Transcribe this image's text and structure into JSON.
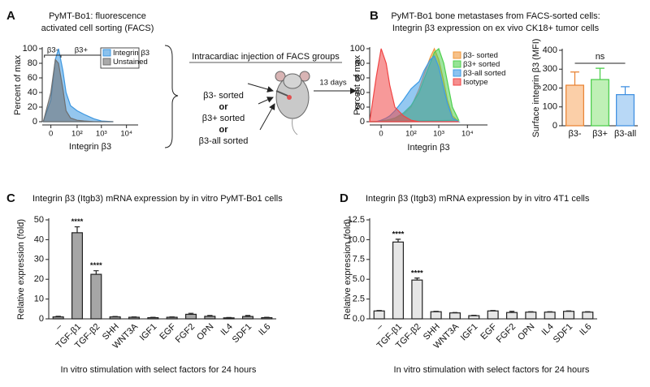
{
  "chart_data": [
    {
      "type": "area",
      "label": "A",
      "title": [
        "PyMT-Bo1: fluorescence",
        "activated cell sorting (FACS)"
      ],
      "xlabel": "Integrin β3",
      "ylabel": "Percent of max",
      "xscale": "symlog",
      "xlim": [
        -12,
        29000
      ],
      "xticks": [
        0,
        {
          "value": 100,
          "label": "10²"
        },
        {
          "value": 1000,
          "label": "10³"
        },
        {
          "value": 10000,
          "label": "10⁴"
        }
      ],
      "ylim": [
        0,
        100
      ],
      "yticks": [
        0,
        20,
        40,
        60,
        80,
        100
      ],
      "legend": "upper right",
      "x": [
        -10,
        0,
        5,
        10,
        20,
        30,
        50,
        100,
        200,
        500,
        1000,
        3000
      ],
      "series": [
        {
          "name": "Integrin β3",
          "color": "#3d97e0",
          "values": [
            0,
            30,
            85,
            100,
            70,
            40,
            22,
            15,
            10,
            4,
            1,
            0
          ]
        },
        {
          "name": "Unstained",
          "color": "#6f6f6f",
          "values": [
            0,
            40,
            85,
            80,
            45,
            15,
            5,
            2,
            1,
            0,
            0,
            0
          ]
        }
      ],
      "gates": [
        {
          "label": "β3-",
          "range": [
            -8,
            15
          ]
        },
        {
          "label": "β3+",
          "range": [
            15,
            1000
          ]
        }
      ]
    },
    {
      "type": "area",
      "label": "B",
      "title": [
        "PyMT-Bo1 bone metastases from FACS-sorted cells:",
        "Integrin β3 expression on ex vivo CK18+ tumor cells"
      ],
      "xlabel": "Integrin β3",
      "ylabel": "Percent of max",
      "xscale": "symlog",
      "xlim": [
        -15,
        50000
      ],
      "xticks": [
        0,
        {
          "value": 100,
          "label": "10²"
        },
        {
          "value": 1000,
          "label": "10³"
        },
        {
          "value": 10000,
          "label": "10⁴"
        }
      ],
      "ylim": [
        0,
        100
      ],
      "yticks": [
        0,
        20,
        40,
        60,
        80,
        100
      ],
      "legend": "upper right",
      "x": [
        -15,
        -5,
        0,
        5,
        10,
        20,
        50,
        100,
        200,
        300,
        500,
        700,
        1000,
        1500,
        2000,
        3000,
        5000
      ],
      "series": [
        {
          "name": "β3- sorted",
          "color": "#f0983a",
          "values": [
            0,
            0,
            1,
            2,
            3,
            5,
            10,
            20,
            45,
            65,
            88,
            100,
            85,
            55,
            30,
            8,
            0
          ]
        },
        {
          "name": "β3+ sorted",
          "color": "#4fd04f",
          "values": [
            0,
            0,
            1,
            2,
            3,
            5,
            12,
            22,
            40,
            58,
            80,
            95,
            100,
            80,
            55,
            20,
            2
          ]
        },
        {
          "name": "β3-all sorted",
          "color": "#3d9be6",
          "values": [
            0,
            0,
            2,
            5,
            8,
            15,
            30,
            45,
            55,
            70,
            85,
            90,
            75,
            45,
            25,
            5,
            0
          ]
        },
        {
          "name": "Isotype",
          "color": "#f04545",
          "values": [
            0,
            60,
            100,
            80,
            50,
            20,
            8,
            2,
            0,
            0,
            0,
            0,
            0,
            0,
            0,
            0,
            0
          ]
        }
      ]
    },
    {
      "type": "bar",
      "ylabel": "Surface integrin β3 (MFI)",
      "categories": [
        "β3-",
        "β3+",
        "β3-all"
      ],
      "values": [
        215,
        245,
        165
      ],
      "errors": [
        70,
        60,
        42
      ],
      "colors": [
        "#fbcfa8",
        "#bff0b6",
        "#b8d8f6"
      ],
      "edge_colors": [
        "#e8802e",
        "#45cc45",
        "#3b8de0"
      ],
      "ylim": [
        0,
        400
      ],
      "yticks": [
        0,
        100,
        200,
        300,
        400
      ],
      "annotation": "ns"
    },
    {
      "type": "bar",
      "label": "C",
      "title": "Integrin β3 (Itgb3) mRNA expression by in vitro PyMT-Bo1 cells",
      "ylabel": "Relative expression (fold)",
      "xlabel": "In vitro stimulation with select factors for 24 hours",
      "categories": [
        "–",
        "TGF-β1",
        "TGF-β2",
        "SHH",
        "WNT3A",
        "IGF1",
        "EGF",
        "FGF2",
        "OPN",
        "IL4",
        "SDF1",
        "IL6"
      ],
      "values": [
        1.0,
        43.5,
        22.5,
        1.0,
        0.8,
        0.6,
        0.8,
        2.3,
        1.3,
        0.5,
        1.2,
        0.6
      ],
      "errors": [
        0.3,
        3.0,
        1.8,
        0.2,
        0.2,
        0.2,
        0.2,
        0.5,
        0.4,
        0.2,
        0.5,
        0.2
      ],
      "significance": [
        null,
        "****",
        "****",
        null,
        null,
        null,
        null,
        null,
        null,
        null,
        null,
        null
      ],
      "color": "#a6a6a6",
      "edge_color": "#222222",
      "xtick_rotation": 45,
      "ylim": [
        0,
        50
      ],
      "yticks": [
        0,
        10,
        20,
        30,
        40,
        50
      ]
    },
    {
      "type": "bar",
      "label": "D",
      "title": "Integrin β3 (Itgb3) mRNA expression by in vitro 4T1 cells",
      "ylabel": "Relative expression (fold)",
      "xlabel": "In vitro stimulation with select factors for 24 hours",
      "categories": [
        "–",
        "TGF-β1",
        "TGF-β2",
        "SHH",
        "WNT3A",
        "IGF1",
        "EGF",
        "FGF2",
        "OPN",
        "IL4",
        "SDF1",
        "IL6"
      ],
      "values": [
        1.0,
        9.7,
        4.9,
        0.9,
        0.75,
        0.4,
        1.0,
        0.8,
        0.85,
        0.85,
        0.95,
        0.85
      ],
      "errors": [
        0.05,
        0.35,
        0.25,
        0.05,
        0.05,
        0.05,
        0.05,
        0.15,
        0.05,
        0.05,
        0.05,
        0.05
      ],
      "significance": [
        null,
        "****",
        "****",
        null,
        null,
        null,
        null,
        null,
        null,
        null,
        null,
        null
      ],
      "color": "#e6e6e6",
      "edge_color": "#222222",
      "xtick_rotation": 45,
      "ylim": [
        0,
        12.5
      ],
      "yticks": [
        {
          "value": 0,
          "label": "0.0"
        },
        2.5,
        {
          "value": 5,
          "label": "5.0"
        },
        7.5,
        {
          "value": 10,
          "label": "10.0"
        },
        12.5
      ]
    }
  ],
  "diagram": {
    "title": "Intracardiac injection of FACS groups",
    "groups": [
      "β3- sorted",
      "β3+ sorted",
      "β3-all sorted"
    ],
    "connector": "or",
    "duration": "13 days"
  }
}
